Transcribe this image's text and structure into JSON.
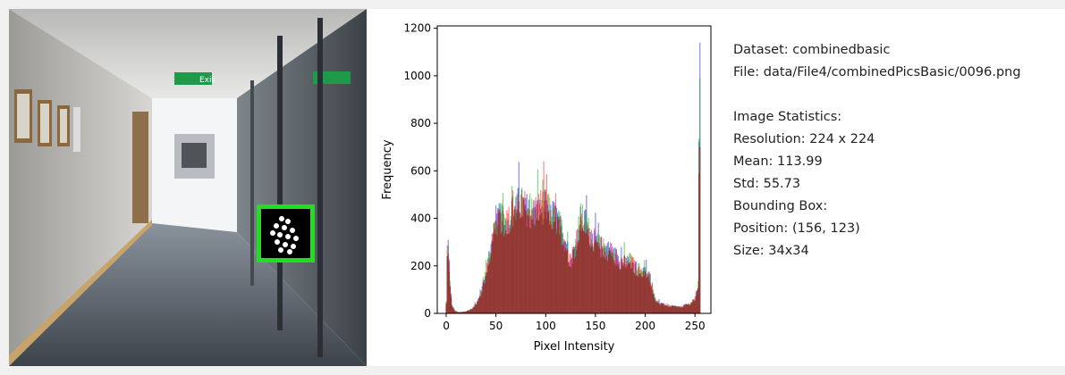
{
  "info": {
    "dataset": "Dataset: combinedbasic",
    "file": "File: data/File4/combinedPicsBasic/0096.png",
    "stats_title": "Image Statistics:",
    "resolution": "Resolution: 224 x 224",
    "mean": "Mean: 113.99",
    "std": "Std: 55.73",
    "bbox_title": "Bounding Box:",
    "position": "Position: (156, 123)",
    "size": "Size: 34x34"
  },
  "photo": {
    "exit_sign_text": "Exit",
    "bbox_color": "#22dd22"
  },
  "chart_data": {
    "type": "bar",
    "xlabel": "Pixel Intensity",
    "ylabel": "Frequency",
    "xlim": [
      -9,
      266
    ],
    "ylim": [
      0,
      1210
    ],
    "xticks": [
      0,
      50,
      100,
      150,
      200,
      250
    ],
    "yticks": [
      0,
      200,
      400,
      600,
      800,
      1000,
      1200
    ],
    "series": [
      {
        "color": "#0000ff",
        "values": []
      },
      {
        "color": "#00aa00",
        "values": []
      },
      {
        "color": "#ff0000",
        "values": []
      }
    ],
    "envelope": {
      "x": [
        0,
        2,
        4,
        6,
        9,
        13,
        20,
        26,
        30,
        35,
        40,
        45,
        50,
        55,
        60,
        65,
        70,
        75,
        80,
        85,
        90,
        95,
        100,
        105,
        110,
        115,
        120,
        125,
        130,
        135,
        140,
        145,
        150,
        155,
        160,
        165,
        170,
        175,
        180,
        185,
        190,
        195,
        200,
        205,
        210,
        215,
        220,
        225,
        230,
        235,
        240,
        245,
        250,
        253,
        255
      ],
      "y": [
        40,
        280,
        120,
        30,
        10,
        5,
        8,
        20,
        40,
        80,
        170,
        280,
        390,
        400,
        380,
        420,
        450,
        460,
        440,
        420,
        430,
        450,
        450,
        420,
        400,
        360,
        300,
        220,
        290,
        400,
        380,
        330,
        300,
        280,
        270,
        260,
        240,
        220,
        210,
        220,
        190,
        180,
        170,
        150,
        60,
        40,
        35,
        30,
        30,
        25,
        35,
        40,
        60,
        120,
        1140
      ]
    }
  }
}
